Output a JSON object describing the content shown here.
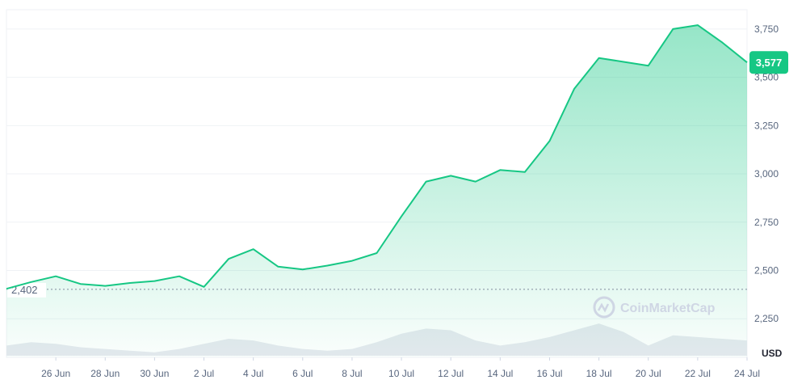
{
  "chart_data": {
    "type": "area",
    "unit": "USD",
    "watermark": "CoinMarketCap",
    "colors": {
      "line": "#16c784",
      "area_top": "#16c784",
      "volume": "#e6e9ef",
      "grid": "#eff2f5",
      "reference": "#808a9d"
    },
    "ylim": [
      2050,
      3850
    ],
    "y_ticks": [
      {
        "value": 2250,
        "label": "2,250"
      },
      {
        "value": 2500,
        "label": "2,500"
      },
      {
        "value": 2750,
        "label": "2,750"
      },
      {
        "value": 3000,
        "label": "3,000"
      },
      {
        "value": 3250,
        "label": "3,250"
      },
      {
        "value": 3500,
        "label": "3,500"
      },
      {
        "value": 3750,
        "label": "3,750"
      }
    ],
    "x_range": [
      "2024-06-24",
      "2024-07-24"
    ],
    "x_ticks": [
      {
        "date": "2024-06-26",
        "label": "26 Jun"
      },
      {
        "date": "2024-06-28",
        "label": "28 Jun"
      },
      {
        "date": "2024-06-30",
        "label": "30 Jun"
      },
      {
        "date": "2024-07-02",
        "label": "2 Jul"
      },
      {
        "date": "2024-07-04",
        "label": "4 Jul"
      },
      {
        "date": "2024-07-06",
        "label": "6 Jul"
      },
      {
        "date": "2024-07-08",
        "label": "8 Jul"
      },
      {
        "date": "2024-07-10",
        "label": "10 Jul"
      },
      {
        "date": "2024-07-12",
        "label": "12 Jul"
      },
      {
        "date": "2024-07-14",
        "label": "14 Jul"
      },
      {
        "date": "2024-07-16",
        "label": "16 Jul"
      },
      {
        "date": "2024-07-18",
        "label": "18 Jul"
      },
      {
        "date": "2024-07-20",
        "label": "20 Jul"
      },
      {
        "date": "2024-07-22",
        "label": "22 Jul"
      },
      {
        "date": "2024-07-24",
        "label": "24 Jul"
      }
    ],
    "reference_line": {
      "value": 2402,
      "label": "2,402"
    },
    "current_price": {
      "value": 3577,
      "label": "3,577"
    },
    "price": {
      "x": [
        "2024-06-24",
        "2024-06-25",
        "2024-06-26",
        "2024-06-27",
        "2024-06-28",
        "2024-06-29",
        "2024-06-30",
        "2024-07-01",
        "2024-07-02",
        "2024-07-03",
        "2024-07-04",
        "2024-07-05",
        "2024-07-06",
        "2024-07-07",
        "2024-07-08",
        "2024-07-09",
        "2024-07-10",
        "2024-07-11",
        "2024-07-12",
        "2024-07-13",
        "2024-07-14",
        "2024-07-15",
        "2024-07-16",
        "2024-07-17",
        "2024-07-18",
        "2024-07-19",
        "2024-07-20",
        "2024-07-21",
        "2024-07-22",
        "2024-07-23",
        "2024-07-24"
      ],
      "y": [
        2405,
        2440,
        2470,
        2430,
        2420,
        2435,
        2445,
        2470,
        2415,
        2560,
        2610,
        2520,
        2505,
        2525,
        2550,
        2590,
        2780,
        2960,
        2990,
        2960,
        3020,
        3010,
        3170,
        3440,
        3600,
        3580,
        3560,
        3750,
        3770,
        3680,
        3577
      ]
    },
    "volume": {
      "x": [
        "2024-06-24",
        "2024-06-25",
        "2024-06-26",
        "2024-06-27",
        "2024-06-28",
        "2024-06-29",
        "2024-06-30",
        "2024-07-01",
        "2024-07-02",
        "2024-07-03",
        "2024-07-04",
        "2024-07-05",
        "2024-07-06",
        "2024-07-07",
        "2024-07-08",
        "2024-07-09",
        "2024-07-10",
        "2024-07-11",
        "2024-07-12",
        "2024-07-13",
        "2024-07-14",
        "2024-07-15",
        "2024-07-16",
        "2024-07-17",
        "2024-07-18",
        "2024-07-19",
        "2024-07-20",
        "2024-07-21",
        "2024-07-22",
        "2024-07-23",
        "2024-07-24"
      ],
      "relative": [
        0.3,
        0.4,
        0.35,
        0.25,
        0.2,
        0.15,
        0.1,
        0.2,
        0.35,
        0.5,
        0.45,
        0.3,
        0.2,
        0.15,
        0.2,
        0.4,
        0.65,
        0.8,
        0.75,
        0.45,
        0.3,
        0.4,
        0.55,
        0.75,
        0.95,
        0.7,
        0.3,
        0.6,
        0.55,
        0.5,
        0.45
      ]
    }
  }
}
